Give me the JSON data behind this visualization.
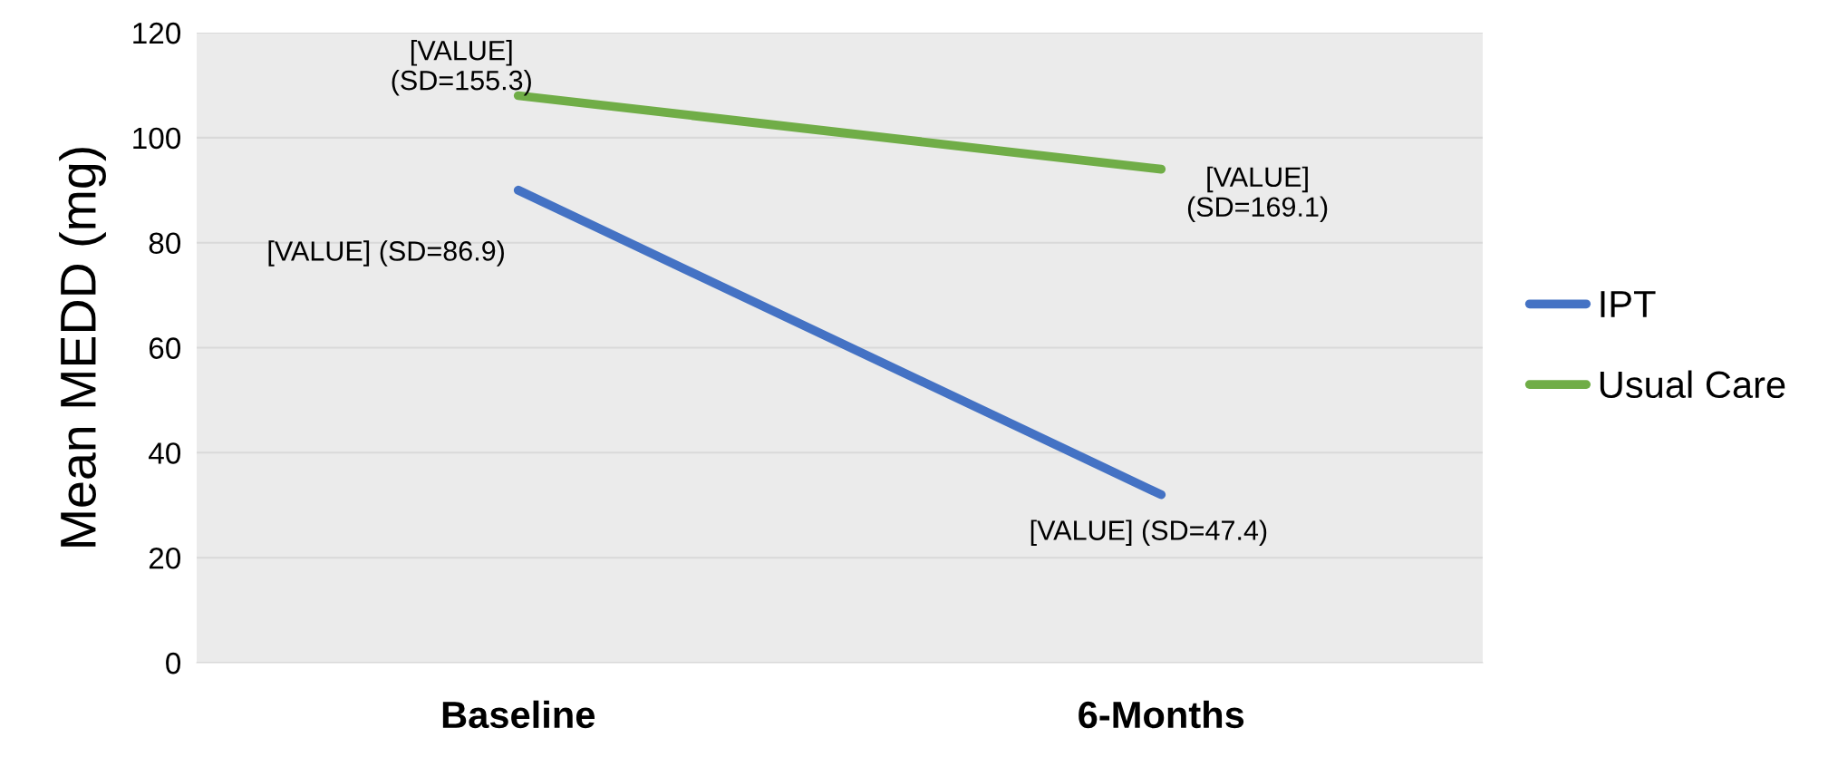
{
  "chart_data": {
    "type": "line",
    "ylabel": "Mean MEDD (mg)",
    "categories": [
      "Baseline",
      "6-Months"
    ],
    "series": [
      {
        "name": "IPT",
        "color": "#4472c4",
        "values": [
          90,
          32
        ]
      },
      {
        "name": "Usual Care",
        "color": "#70ad47",
        "values": [
          108,
          94
        ]
      }
    ],
    "annotations": [
      {
        "text": "[VALUE] (SD=86.9)",
        "x": "Baseline",
        "y": 90
      },
      {
        "text": "[VALUE] (SD=47.4)",
        "x": "6-Months",
        "y": 32
      },
      {
        "text": "[VALUE]\n(SD=155.3)",
        "x": "Baseline",
        "y": 108
      },
      {
        "text": "[VALUE]\n(SD=169.1)",
        "x": "6-Months",
        "y": 94
      }
    ],
    "ylim": [
      0,
      120
    ],
    "yticks": [
      0,
      20,
      40,
      60,
      80,
      100,
      120
    ],
    "grid": "y",
    "legend": "right",
    "marker": "none",
    "line_style": "solid"
  }
}
